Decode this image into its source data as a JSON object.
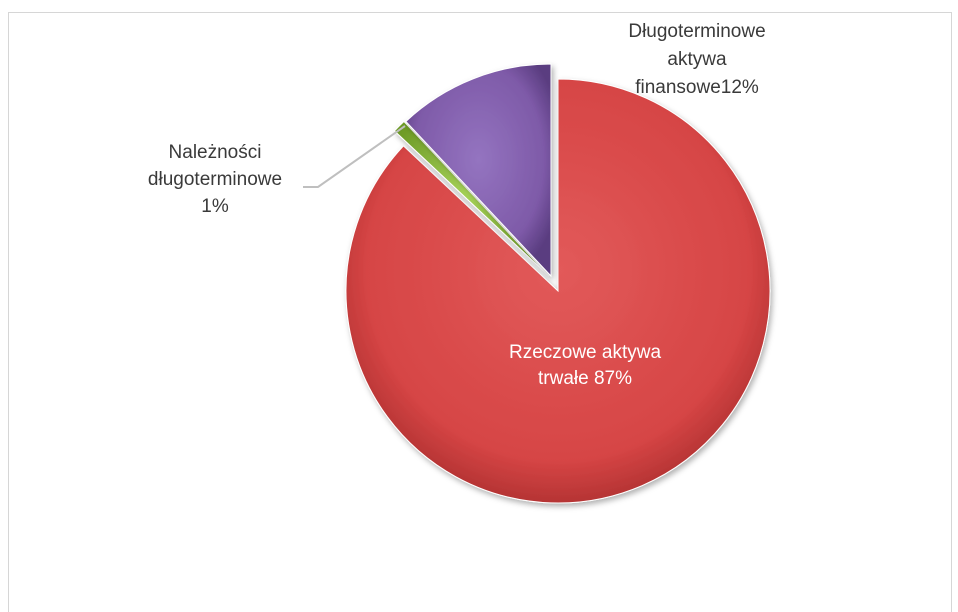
{
  "chart_data": {
    "type": "pie",
    "title": "",
    "exploded": true,
    "slices": [
      {
        "label": "Rzeczowe aktywa trwałe",
        "value": 87,
        "color": "#d64545",
        "label_lines": [
          "Rzeczowe aktywa",
          "trwałe 87%"
        ],
        "label_color": "#ffffff"
      },
      {
        "label": "Należności długoterminowe",
        "value": 1,
        "color": "#8fc03c",
        "label_lines": [
          "Należności",
          "długoterminowe",
          "1%"
        ],
        "label_color": "#3a3a3a"
      },
      {
        "label": "Długoterminowe aktywa finansowe",
        "value": 12,
        "color": "#7e5aa8",
        "label_lines": [
          "Długoterminowe",
          "aktywa",
          "finansowe12%"
        ],
        "label_color": "#3a3a3a"
      }
    ]
  }
}
